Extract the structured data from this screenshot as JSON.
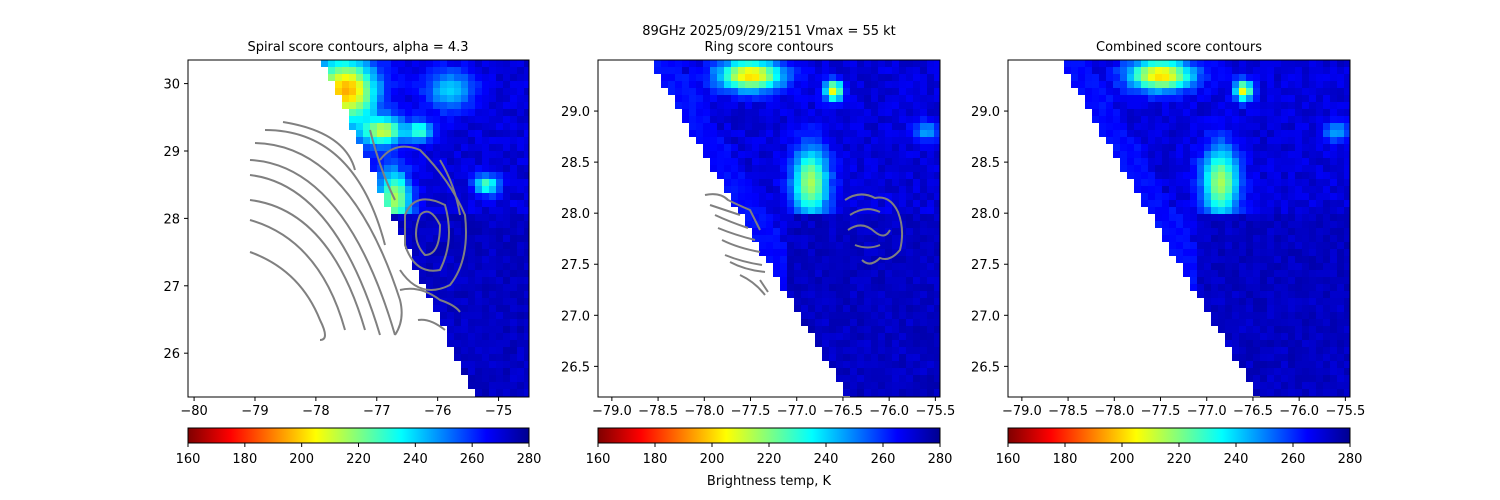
{
  "suptitle": {
    "line1": "89GHz  2025/09/29/2151    Vmax = 55 kt"
  },
  "colorbar_label": "Brightness temp, K",
  "colormap": {
    "name": "jet_r",
    "stops": [
      "#7f0000",
      "#ff0000",
      "#ff8000",
      "#ffff00",
      "#80ff80",
      "#00ffff",
      "#0080ff",
      "#0000ff",
      "#00008f"
    ]
  },
  "chart_data": [
    {
      "type": "heatmap",
      "title": "Spiral score contours, alpha =  4.3",
      "xlim": [
        -80.1,
        -74.5
      ],
      "ylim": [
        25.35,
        30.35
      ],
      "xticks": [
        -80,
        -79,
        -78,
        -77,
        -76,
        -75
      ],
      "xticklabels": [
        "−80",
        "−79",
        "−78",
        "−77",
        "−76",
        "−75"
      ],
      "yticks": [
        26,
        27,
        28,
        29,
        30
      ],
      "yticklabels": [
        "26",
        "27",
        "28",
        "29",
        "30"
      ],
      "swath_edge": [
        [
          -77.9,
          30.35
        ],
        [
          -75.4,
          25.35
        ]
      ],
      "colorbar": {
        "range": [
          160,
          280
        ],
        "ticks": [
          "160",
          "180",
          "200",
          "220",
          "240",
          "260",
          "280"
        ]
      },
      "contour_style": "gray",
      "features": [
        {
          "lon": -77.5,
          "lat": 29.9,
          "tb": 195,
          "sx": 0.5,
          "sy": 0.45
        },
        {
          "lon": -76.9,
          "lat": 29.3,
          "tb": 210,
          "sx": 0.35,
          "sy": 0.2
        },
        {
          "lon": -76.7,
          "lat": 28.3,
          "tb": 215,
          "sx": 0.25,
          "sy": 0.4
        },
        {
          "lon": -76.3,
          "lat": 29.3,
          "tb": 225,
          "sx": 0.2,
          "sy": 0.15
        },
        {
          "lon": -75.2,
          "lat": 28.5,
          "tb": 225,
          "sx": 0.2,
          "sy": 0.15
        },
        {
          "lon": -75.8,
          "lat": 29.9,
          "tb": 240,
          "sx": 0.4,
          "sy": 0.3
        }
      ]
    },
    {
      "type": "heatmap",
      "title": "Ring score contours",
      "xlim": [
        -79.15,
        -75.45
      ],
      "ylim": [
        26.2,
        29.5
      ],
      "xticks": [
        -79.0,
        -78.5,
        -78.0,
        -77.5,
        -77.0,
        -76.5,
        -76.0,
        -75.5
      ],
      "xticklabels": [
        "−79.0",
        "−78.5",
        "−78.0",
        "−77.5",
        "−77.0",
        "−76.5",
        "−76.0",
        "−75.5"
      ],
      "yticks": [
        26.5,
        27.0,
        27.5,
        28.0,
        28.5,
        29.0
      ],
      "yticklabels": [
        "26.5",
        "27.0",
        "27.5",
        "28.0",
        "28.5",
        "29.0"
      ],
      "swath_edge": [
        [
          -78.6,
          29.5
        ],
        [
          -76.45,
          26.2
        ]
      ],
      "colorbar": {
        "range": [
          160,
          280
        ],
        "ticks": [
          "160",
          "180",
          "200",
          "220",
          "240",
          "260",
          "280"
        ]
      },
      "contour_style": "gray",
      "features": [
        {
          "lon": -77.5,
          "lat": 29.35,
          "tb": 200,
          "sx": 0.35,
          "sy": 0.15
        },
        {
          "lon": -76.6,
          "lat": 29.2,
          "tb": 205,
          "sx": 0.1,
          "sy": 0.1
        },
        {
          "lon": -76.85,
          "lat": 28.3,
          "tb": 215,
          "sx": 0.2,
          "sy": 0.35
        },
        {
          "lon": -75.6,
          "lat": 28.8,
          "tb": 245,
          "sx": 0.15,
          "sy": 0.1
        }
      ]
    },
    {
      "type": "heatmap",
      "title": "Combined score contours",
      "xlim": [
        -79.15,
        -75.45
      ],
      "ylim": [
        26.2,
        29.5
      ],
      "xticks": [
        -79.0,
        -78.5,
        -78.0,
        -77.5,
        -77.0,
        -76.5,
        -76.0,
        -75.5
      ],
      "xticklabels": [
        "−79.0",
        "−78.5",
        "−78.0",
        "−77.5",
        "−77.0",
        "−76.5",
        "−76.0",
        "−75.5"
      ],
      "yticks": [
        26.5,
        27.0,
        27.5,
        28.0,
        28.5,
        29.0
      ],
      "yticklabels": [
        "26.5",
        "27.0",
        "27.5",
        "28.0",
        "28.5",
        "29.0"
      ],
      "swath_edge": [
        [
          -78.6,
          29.5
        ],
        [
          -76.45,
          26.2
        ]
      ],
      "colorbar": {
        "range": [
          160,
          280
        ],
        "ticks": [
          "160",
          "180",
          "200",
          "220",
          "240",
          "260",
          "280"
        ]
      },
      "contour_style": "none",
      "features": [
        {
          "lon": -77.5,
          "lat": 29.35,
          "tb": 200,
          "sx": 0.35,
          "sy": 0.15
        },
        {
          "lon": -76.6,
          "lat": 29.2,
          "tb": 205,
          "sx": 0.1,
          "sy": 0.1
        },
        {
          "lon": -76.85,
          "lat": 28.3,
          "tb": 215,
          "sx": 0.2,
          "sy": 0.35
        },
        {
          "lon": -75.6,
          "lat": 28.8,
          "tb": 245,
          "sx": 0.15,
          "sy": 0.1
        }
      ]
    }
  ]
}
